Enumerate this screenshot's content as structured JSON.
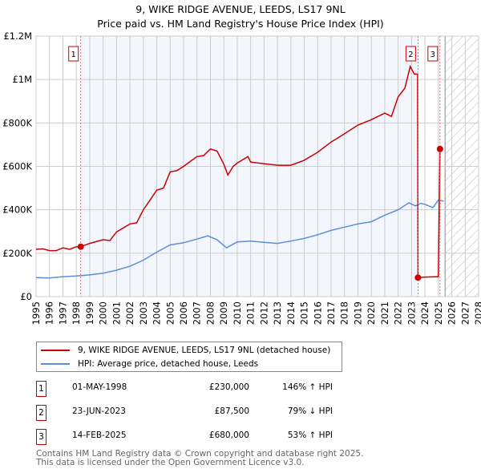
{
  "chart_data": {
    "type": "line",
    "title": "9, WIKE RIDGE AVENUE, LEEDS, LS17 9NL",
    "subtitle": "Price paid vs. HM Land Registry's House Price Index (HPI)",
    "xlim": [
      1995,
      2028
    ],
    "ylim": [
      0,
      1200000
    ],
    "x_ticks": [
      "1995",
      "1996",
      "1997",
      "1998",
      "1999",
      "2000",
      "2001",
      "2002",
      "2003",
      "2004",
      "2005",
      "2006",
      "2007",
      "2008",
      "2009",
      "2010",
      "2011",
      "2012",
      "2013",
      "2014",
      "2015",
      "2016",
      "2017",
      "2018",
      "2019",
      "2020",
      "2021",
      "2022",
      "2023",
      "2024",
      "2025",
      "2026",
      "2027",
      "2028"
    ],
    "y_ticks": [
      {
        "v": 0,
        "label": "£0"
      },
      {
        "v": 200000,
        "label": "£200K"
      },
      {
        "v": 400000,
        "label": "£400K"
      },
      {
        "v": 600000,
        "label": "£600K"
      },
      {
        "v": 800000,
        "label": "£800K"
      },
      {
        "v": 1000000,
        "label": "£1M"
      },
      {
        "v": 1200000,
        "label": "£1.2M"
      }
    ],
    "series": [
      {
        "name": "9, WIKE RIDGE AVENUE, LEEDS, LS17 9NL (detached house)",
        "color": "#cc0000",
        "x": [
          1995,
          1995.5,
          1996,
          1996.5,
          1997,
          1997.5,
          1998,
          1998.33,
          1999,
          2000,
          2000.5,
          2001,
          2002,
          2002.5,
          2003,
          2004,
          2004.5,
          2005,
          2005.5,
          2006,
          2007,
          2007.5,
          2008,
          2008.5,
          2009,
          2009.3,
          2009.7,
          2010,
          2010.8,
          2011,
          2012,
          2013,
          2014,
          2015,
          2016,
          2017,
          2018,
          2019,
          2020,
          2021,
          2021.5,
          2022,
          2022.5,
          2022.9,
          2023.2,
          2023.45,
          2023.48,
          2024,
          2024.9,
          2025.0,
          2025.12
        ],
        "y": [
          218000,
          220000,
          212000,
          212000,
          225000,
          218000,
          230000,
          230000,
          245000,
          262000,
          258000,
          298000,
          335000,
          340000,
          400000,
          490000,
          500000,
          575000,
          580000,
          600000,
          645000,
          650000,
          680000,
          670000,
          610000,
          560000,
          600000,
          615000,
          645000,
          620000,
          612000,
          605000,
          605000,
          628000,
          665000,
          712000,
          750000,
          790000,
          815000,
          845000,
          830000,
          920000,
          960000,
          1060000,
          1025000,
          1025000,
          87500,
          90000,
          92000,
          92000,
          680000
        ]
      },
      {
        "name": "HPI: Average price, detached house, Leeds",
        "color": "#5b8ed6",
        "x": [
          1995,
          1996,
          1997,
          1998,
          1999,
          2000,
          2001,
          2002,
          2003,
          2004,
          2005,
          2006,
          2007,
          2007.8,
          2008.5,
          2009.2,
          2010,
          2011,
          2012,
          2013,
          2014,
          2015,
          2016,
          2017,
          2018,
          2019,
          2020,
          2021,
          2022,
          2022.8,
          2023.3,
          2023.7,
          2024,
          2024.6,
          2025,
          2025.4
        ],
        "y": [
          88000,
          86000,
          92000,
          95000,
          100000,
          108000,
          122000,
          140000,
          168000,
          205000,
          238000,
          248000,
          265000,
          280000,
          262000,
          225000,
          252000,
          256000,
          250000,
          245000,
          256000,
          268000,
          285000,
          305000,
          320000,
          335000,
          345000,
          375000,
          400000,
          432000,
          418000,
          430000,
          425000,
          410000,
          445000,
          440000
        ]
      }
    ],
    "sales": [
      {
        "n": "1",
        "x": 1998.33,
        "y": 230000
      },
      {
        "n": "2",
        "x": 2023.48,
        "y": 87500
      },
      {
        "n": "3",
        "x": 2025.12,
        "y": 680000
      }
    ],
    "shaded_range": [
      1998.33,
      2023.48
    ],
    "forecast_from": 2025.5
  },
  "legend": {
    "property": "9, WIKE RIDGE AVENUE, LEEDS, LS17 9NL (detached house)",
    "hpi": "HPI: Average price, detached house, Leeds"
  },
  "transactions": [
    {
      "n": "1",
      "date": "01-MAY-1998",
      "price": "£230,000",
      "hpi": "146% ↑ HPI"
    },
    {
      "n": "2",
      "date": "23-JUN-2023",
      "price": "£87,500",
      "hpi": "79% ↓ HPI"
    },
    {
      "n": "3",
      "date": "14-FEB-2025",
      "price": "£680,000",
      "hpi": "53% ↑ HPI"
    }
  ],
  "footer": {
    "line1": "Contains HM Land Registry data © Crown copyright and database right 2025.",
    "line2": "This data is licensed under the Open Government Licence v3.0."
  }
}
